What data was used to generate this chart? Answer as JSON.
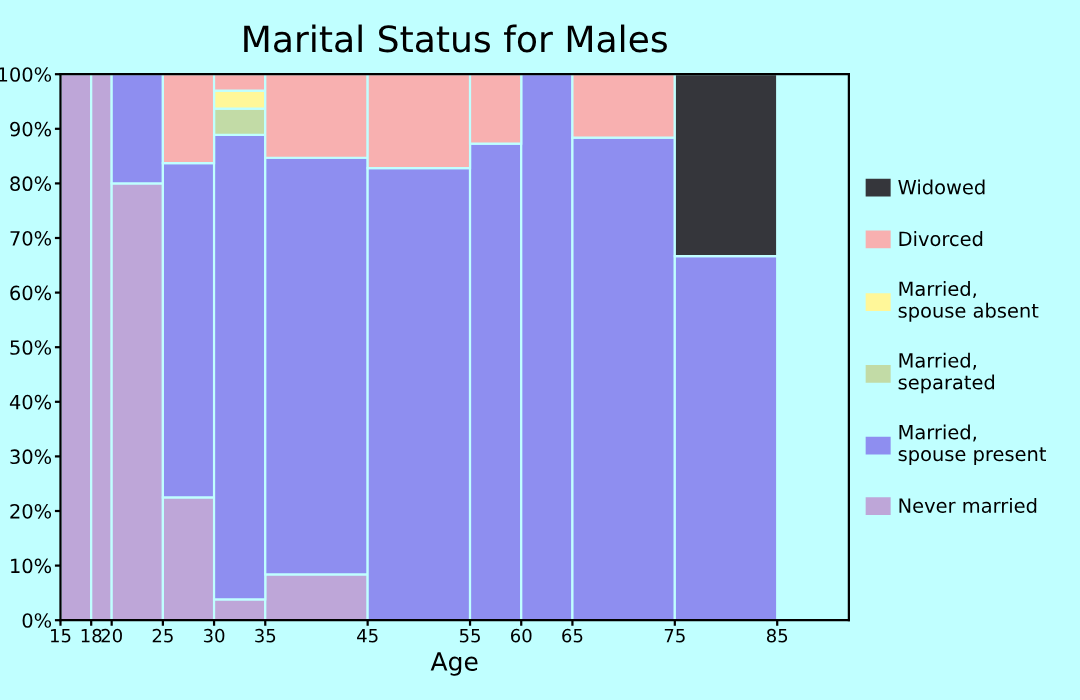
{
  "chart_data": {
    "type": "bar",
    "stacked": true,
    "title": "Marital Status for Males",
    "xlabel": "Age",
    "x": [
      16.5,
      19,
      22.5,
      27.5,
      32.5,
      40,
      50,
      57.5,
      62.5,
      70,
      80
    ],
    "xlim": [
      15,
      92
    ],
    "xticks": [
      15,
      18,
      20,
      25,
      30,
      35,
      45,
      55,
      60,
      65,
      75,
      85
    ],
    "ylim": [
      0,
      100
    ],
    "yticks": [
      {
        "value": 0,
        "label": "0%"
      },
      {
        "value": 10,
        "label": "10%"
      },
      {
        "value": 20,
        "label": "20%"
      },
      {
        "value": 30,
        "label": "30%"
      },
      {
        "value": 40,
        "label": "40%"
      },
      {
        "value": 50,
        "label": "50%"
      },
      {
        "value": 60,
        "label": "60%"
      },
      {
        "value": 70,
        "label": "70%"
      },
      {
        "value": 80,
        "label": "80%"
      },
      {
        "value": 90,
        "label": "90%"
      },
      {
        "value": 100,
        "label": "100%"
      }
    ],
    "grid": false,
    "legend": "right",
    "series": [
      {
        "name": "Never married",
        "color": "#bea6d8",
        "values": [
          100,
          100,
          80,
          22.5,
          3.8,
          8.4,
          null,
          null,
          null,
          null,
          null
        ]
      },
      {
        "name": "Married,\nspouse present",
        "color": "#8e8ef0",
        "values": [
          null,
          null,
          20,
          61.2,
          85.1,
          76.3,
          82.8,
          87.3,
          100,
          88.4,
          66.7
        ]
      },
      {
        "name": "Married,\nseparated",
        "color": "#c2dba6",
        "values": [
          null,
          null,
          null,
          null,
          4.8,
          null,
          null,
          null,
          null,
          null,
          null
        ]
      },
      {
        "name": "Married,\nspouse absent",
        "color": "#fff799",
        "values": [
          null,
          null,
          null,
          null,
          3.3,
          null,
          null,
          null,
          null,
          null,
          null
        ]
      },
      {
        "name": "Divorced",
        "color": "#f8b0b0",
        "values": [
          null,
          null,
          null,
          16.3,
          3.0,
          15.3,
          17.2,
          12.7,
          null,
          11.6,
          null
        ]
      },
      {
        "name": "Widowed",
        "color": "#35363b",
        "values": [
          null,
          null,
          null,
          null,
          null,
          null,
          null,
          null,
          null,
          null,
          33.3
        ]
      }
    ]
  }
}
